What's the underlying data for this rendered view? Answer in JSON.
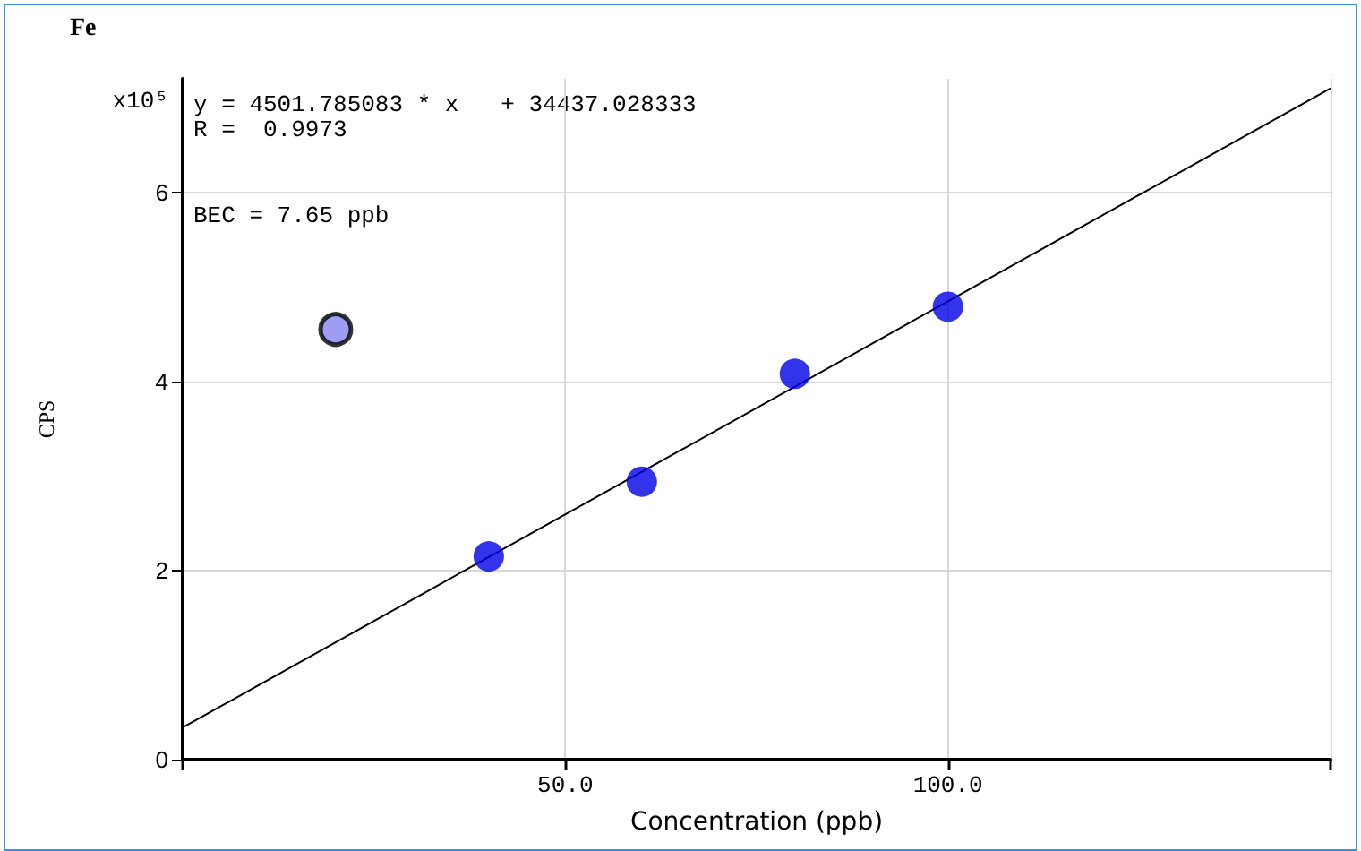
{
  "chart_data": {
    "type": "scatter",
    "title": "Fe",
    "xlabel": "Concentration (ppb)",
    "ylabel": "CPS",
    "annotations": [
      "x10⁵",
      "y = 4501.785083 * x   + 34437.028333",
      "R =  0.9973",
      "BEC = 7.65 ppb"
    ],
    "series": [
      {
        "color": "#0000e6",
        "x": [
          40,
          60,
          80,
          100
        ],
        "values": [
          2.15,
          2.94,
          4.08,
          4.79
        ]
      },
      {
        "color": "#8484f0",
        "x": [
          20
        ],
        "values": [
          4.55
        ]
      },
      {
        "type": "line",
        "marker": "none",
        "color": "#000000",
        "x": [
          0,
          150
        ],
        "values": [
          0.34,
          7.1
        ]
      }
    ],
    "marker": "circle",
    "grid": true,
    "xlim": [
      0,
      150
    ],
    "xticks": [
      {
        "value": 0,
        "label": null
      },
      {
        "value": 50,
        "label": "50.0"
      },
      {
        "value": 100,
        "label": "100.0"
      },
      {
        "value": 150,
        "label": null
      }
    ],
    "ylim": [
      0,
      7.2
    ],
    "yticks": [
      0,
      2,
      4,
      6
    ]
  }
}
